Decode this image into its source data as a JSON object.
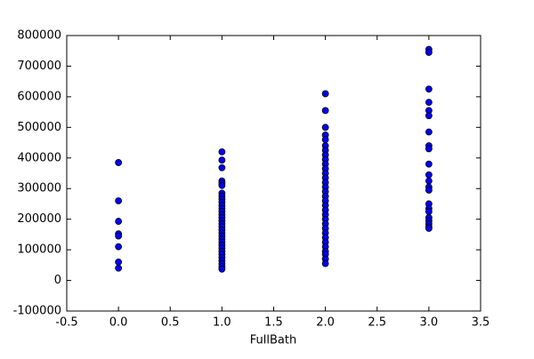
{
  "chart_data": {
    "type": "scatter",
    "xlabel": "FullBath",
    "color": "#0000ff",
    "x": [
      0,
      0,
      0,
      0,
      0,
      0,
      0,
      0,
      1,
      1,
      1,
      1,
      1,
      1,
      1,
      1,
      1,
      1,
      1,
      1,
      1,
      1,
      1,
      1,
      1,
      1,
      1,
      1,
      1,
      1,
      1,
      1,
      1,
      1,
      1,
      1,
      1,
      1,
      1,
      1,
      2,
      2,
      2,
      2,
      2,
      2,
      2,
      2,
      2,
      2,
      2,
      2,
      2,
      2,
      2,
      2,
      2,
      2,
      2,
      2,
      2,
      2,
      2,
      2,
      2,
      2,
      2,
      2,
      2,
      2,
      2,
      2,
      3,
      3,
      3,
      3,
      3,
      3,
      3,
      3,
      3,
      3,
      3,
      3,
      3,
      3,
      3,
      3,
      3,
      3,
      3,
      3,
      3,
      3
    ],
    "values": [
      385000,
      260000,
      193000,
      152000,
      145000,
      110000,
      60000,
      40000,
      420000,
      393000,
      368000,
      325000,
      318000,
      310000,
      285000,
      275000,
      265000,
      255000,
      245000,
      235000,
      225000,
      215000,
      205000,
      195000,
      185000,
      175000,
      165000,
      155000,
      145000,
      135000,
      125000,
      115000,
      105000,
      95000,
      85000,
      75000,
      65000,
      55000,
      45000,
      37000,
      610000,
      555000,
      500000,
      475000,
      460000,
      440000,
      425000,
      410000,
      395000,
      380000,
      365000,
      350000,
      335000,
      320000,
      305000,
      290000,
      275000,
      260000,
      245000,
      230000,
      215000,
      200000,
      185000,
      170000,
      155000,
      140000,
      125000,
      110000,
      95000,
      85000,
      70000,
      55000,
      755000,
      745000,
      625000,
      582000,
      555000,
      538000,
      485000,
      440000,
      430000,
      380000,
      345000,
      325000,
      305000,
      295000,
      250000,
      235000,
      225000,
      205000,
      195000,
      185000,
      175000,
      170000
    ],
    "xlim": [
      -0.5,
      3.5
    ],
    "xticks": [
      {
        "value": -0.5,
        "label": "-0.5"
      },
      {
        "value": 0,
        "label": "0.0"
      },
      {
        "value": 0.5,
        "label": "0.5"
      },
      {
        "value": 1,
        "label": "1.0"
      },
      {
        "value": 1.5,
        "label": "1.5"
      },
      {
        "value": 2,
        "label": "2.0"
      },
      {
        "value": 2.5,
        "label": "2.5"
      },
      {
        "value": 3,
        "label": "3.0"
      },
      {
        "value": 3.5,
        "label": "3.5"
      }
    ],
    "ylim": [
      -100000,
      800000
    ],
    "yticks": [
      -100000,
      0,
      100000,
      200000,
      300000,
      400000,
      500000,
      600000,
      700000,
      800000
    ]
  }
}
